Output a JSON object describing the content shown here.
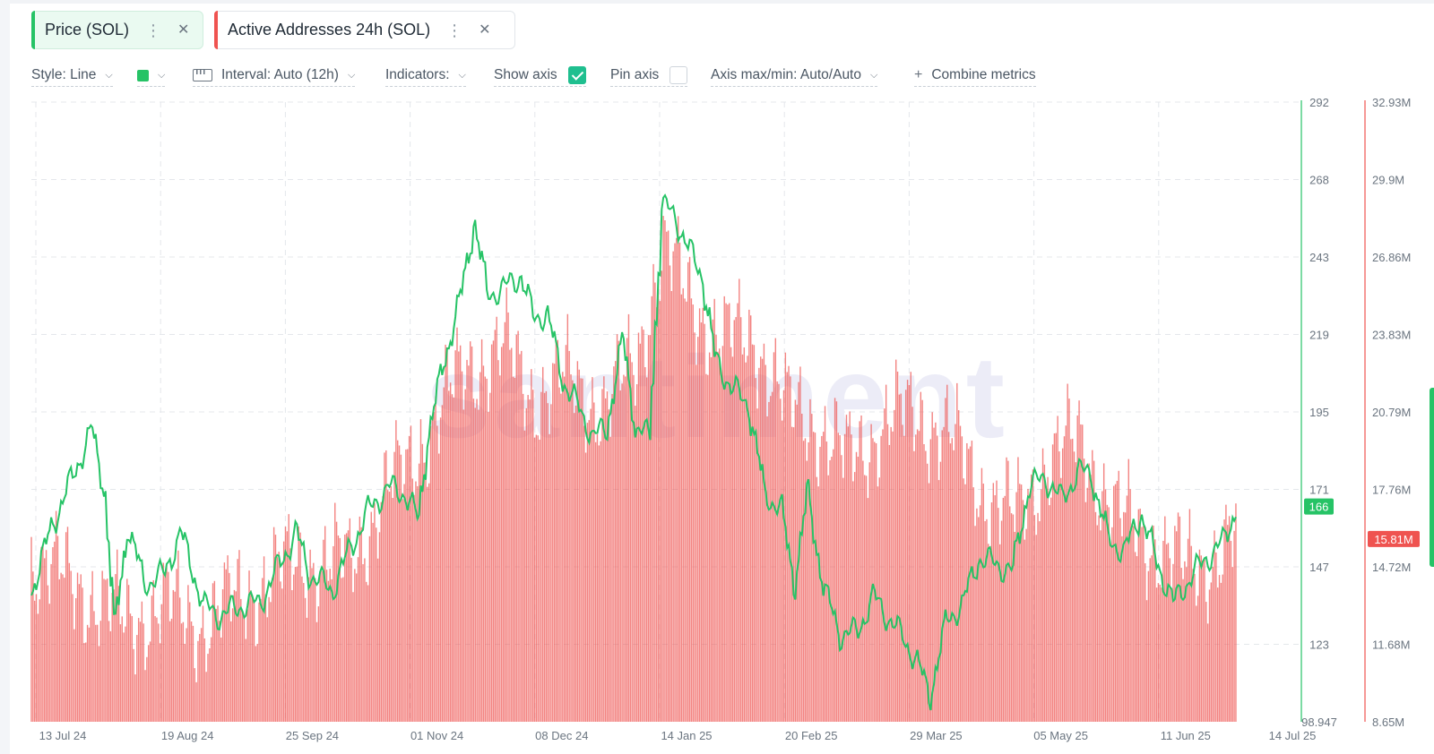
{
  "metrics": [
    {
      "label": "Price (SOL)",
      "color": "#26c366",
      "menu_icon": "kebab-icon",
      "close_icon": "close-icon"
    },
    {
      "label": "Active Addresses 24h (SOL)",
      "color": "#ef5350",
      "menu_icon": "kebab-icon",
      "close_icon": "close-icon"
    }
  ],
  "toolbar": {
    "style_label": "Style: Line",
    "interval_label": "Interval: Auto (12h)",
    "indicators_label": "Indicators:",
    "show_axis_label": "Show axis",
    "show_axis_checked": true,
    "pin_axis_label": "Pin axis",
    "pin_axis_checked": false,
    "axis_label": "Axis max/min: Auto/Auto",
    "combine_label": "Combine metrics"
  },
  "watermark": "santiment",
  "chart_data": {
    "type": "line",
    "x_ticks": [
      "13 Jul 24",
      "19 Aug 24",
      "25 Sep 24",
      "01 Nov 24",
      "08 Dec 24",
      "14 Jan 25",
      "20 Feb 25",
      "29 Mar 25",
      "05 May 25",
      "11 Jun 25",
      "14 Jul 25"
    ],
    "x_range": [
      "2024-07-11",
      "2025-07-14"
    ],
    "grid": true,
    "series": [
      {
        "name": "Price (SOL)",
        "type": "line",
        "color": "#26c366",
        "axis": "right-1",
        "ylim": [
          98.947,
          292
        ],
        "y_ticks": [
          "292",
          "268",
          "243",
          "219",
          "195",
          "171",
          "147",
          "123",
          "98.947"
        ],
        "last_value_label": "166",
        "points": [
          [
            "2024-07-11",
            140
          ],
          [
            "2024-07-17",
            160
          ],
          [
            "2024-07-24",
            177
          ],
          [
            "2024-07-29",
            190
          ],
          [
            "2024-08-02",
            171
          ],
          [
            "2024-08-05",
            128
          ],
          [
            "2024-08-09",
            160
          ],
          [
            "2024-08-14",
            142
          ],
          [
            "2024-08-20",
            145
          ],
          [
            "2024-08-25",
            158
          ],
          [
            "2024-09-01",
            135
          ],
          [
            "2024-09-06",
            132
          ],
          [
            "2024-09-12",
            135
          ],
          [
            "2024-09-18",
            136
          ],
          [
            "2024-09-25",
            150
          ],
          [
            "2024-09-29",
            158
          ],
          [
            "2024-10-03",
            145
          ],
          [
            "2024-10-10",
            140
          ],
          [
            "2024-10-15",
            152
          ],
          [
            "2024-10-21",
            165
          ],
          [
            "2024-10-27",
            172
          ],
          [
            "2024-11-01",
            170
          ],
          [
            "2024-11-05",
            162
          ],
          [
            "2024-11-08",
            188
          ],
          [
            "2024-11-13",
            212
          ],
          [
            "2024-11-18",
            232
          ],
          [
            "2024-11-22",
            255
          ],
          [
            "2024-11-26",
            232
          ],
          [
            "2024-12-01",
            234
          ],
          [
            "2024-12-06",
            238
          ],
          [
            "2024-12-10",
            225
          ],
          [
            "2024-12-14",
            226
          ],
          [
            "2024-12-19",
            205
          ],
          [
            "2024-12-24",
            196
          ],
          [
            "2024-12-28",
            188
          ],
          [
            "2025-01-01",
            190
          ],
          [
            "2025-01-06",
            218
          ],
          [
            "2025-01-10",
            190
          ],
          [
            "2025-01-14",
            188
          ],
          [
            "2025-01-18",
            260
          ],
          [
            "2025-01-22",
            256
          ],
          [
            "2025-01-26",
            246
          ],
          [
            "2025-01-30",
            238
          ],
          [
            "2025-02-03",
            212
          ],
          [
            "2025-02-08",
            203
          ],
          [
            "2025-02-13",
            198
          ],
          [
            "2025-02-18",
            170
          ],
          [
            "2025-02-23",
            165
          ],
          [
            "2025-02-27",
            142
          ],
          [
            "2025-03-03",
            170
          ],
          [
            "2025-03-08",
            140
          ],
          [
            "2025-03-13",
            126
          ],
          [
            "2025-03-18",
            127
          ],
          [
            "2025-03-23",
            138
          ],
          [
            "2025-03-27",
            132
          ],
          [
            "2025-04-01",
            125
          ],
          [
            "2025-04-05",
            118
          ],
          [
            "2025-04-09",
            107
          ],
          [
            "2025-04-14",
            130
          ],
          [
            "2025-04-19",
            136
          ],
          [
            "2025-04-24",
            150
          ],
          [
            "2025-04-29",
            148
          ],
          [
            "2025-05-04",
            146
          ],
          [
            "2025-05-09",
            172
          ],
          [
            "2025-05-14",
            175
          ],
          [
            "2025-05-19",
            168
          ],
          [
            "2025-05-24",
            177
          ],
          [
            "2025-05-28",
            176
          ],
          [
            "2025-06-02",
            156
          ],
          [
            "2025-06-07",
            152
          ],
          [
            "2025-06-12",
            164
          ],
          [
            "2025-06-17",
            148
          ],
          [
            "2025-06-22",
            136
          ],
          [
            "2025-06-27",
            144
          ],
          [
            "2025-07-02",
            150
          ],
          [
            "2025-07-07",
            155
          ],
          [
            "2025-07-11",
            166
          ]
        ]
      },
      {
        "name": "Active Addresses 24h (SOL)",
        "type": "bar",
        "color": "#ef5350",
        "axis": "right-2",
        "ylim": [
          8.65,
          32.93
        ],
        "unit": "M",
        "y_ticks": [
          "32.93M",
          "29.9M",
          "26.86M",
          "23.83M",
          "20.79M",
          "17.76M",
          "14.72M",
          "11.68M",
          "8.65M"
        ],
        "last_value_label": "15.81M",
        "points": [
          [
            "2024-07-11",
            15.0
          ],
          [
            "2024-07-25",
            14.0
          ],
          [
            "2024-08-08",
            12.6
          ],
          [
            "2024-08-20",
            13.2
          ],
          [
            "2024-09-01",
            12.5
          ],
          [
            "2024-09-15",
            13.8
          ],
          [
            "2024-10-01",
            15.0
          ],
          [
            "2024-10-15",
            14.8
          ],
          [
            "2024-10-25",
            17.4
          ],
          [
            "2024-11-01",
            18.5
          ],
          [
            "2024-11-10",
            20.5
          ],
          [
            "2024-11-20",
            22.6
          ],
          [
            "2024-12-01",
            23.2
          ],
          [
            "2024-12-10",
            21.5
          ],
          [
            "2024-12-20",
            22.0
          ],
          [
            "2025-01-01",
            21.0
          ],
          [
            "2025-01-10",
            22.8
          ],
          [
            "2025-01-18",
            27.2
          ],
          [
            "2025-01-25",
            25.5
          ],
          [
            "2025-02-05",
            23.5
          ],
          [
            "2025-02-15",
            23.8
          ],
          [
            "2025-02-25",
            20.8
          ],
          [
            "2025-03-05",
            20.5
          ],
          [
            "2025-03-15",
            18.8
          ],
          [
            "2025-03-25",
            20.2
          ],
          [
            "2025-04-05",
            20.8
          ],
          [
            "2025-04-15",
            19.8
          ],
          [
            "2025-04-25",
            17.8
          ],
          [
            "2025-05-05",
            16.5
          ],
          [
            "2025-05-15",
            19.0
          ],
          [
            "2025-05-25",
            19.6
          ],
          [
            "2025-06-05",
            16.6
          ],
          [
            "2025-06-15",
            15.8
          ],
          [
            "2025-06-25",
            14.6
          ],
          [
            "2025-07-05",
            15.2
          ],
          [
            "2025-07-11",
            15.81
          ]
        ]
      }
    ]
  }
}
